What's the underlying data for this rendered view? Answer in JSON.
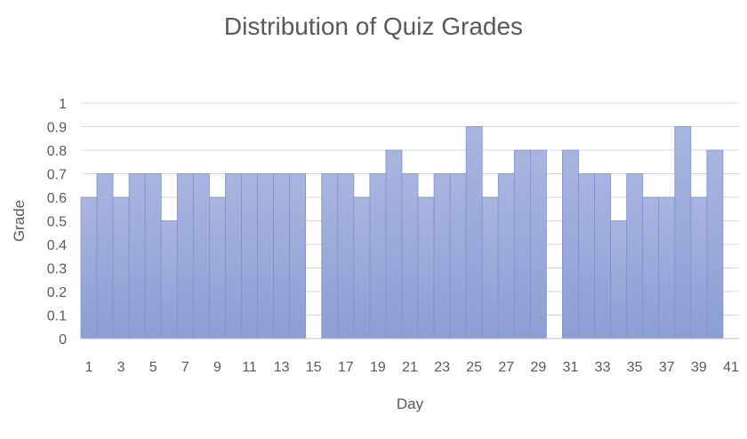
{
  "chart_data": {
    "type": "bar",
    "title": "Distribution of Quiz Grades",
    "xlabel": "Day",
    "ylabel": "Grade",
    "ylim": [
      0,
      1
    ],
    "yticks": [
      "0",
      "0.1",
      "0.2",
      "0.3",
      "0.4",
      "0.5",
      "0.6",
      "0.7",
      "0.8",
      "0.9",
      "1"
    ],
    "categories": [
      1,
      2,
      3,
      4,
      5,
      6,
      7,
      8,
      9,
      10,
      11,
      12,
      13,
      14,
      15,
      16,
      17,
      18,
      19,
      20,
      21,
      22,
      23,
      24,
      25,
      26,
      27,
      28,
      29,
      30,
      31,
      32,
      33,
      34,
      35,
      36,
      37,
      38,
      39,
      40,
      41
    ],
    "xtick_labels": [
      "1",
      "3",
      "5",
      "7",
      "9",
      "11",
      "13",
      "15",
      "17",
      "19",
      "21",
      "23",
      "25",
      "27",
      "29",
      "31",
      "33",
      "35",
      "37",
      "39",
      "41"
    ],
    "values": [
      0.6,
      0.7,
      0.6,
      0.7,
      0.7,
      0.5,
      0.7,
      0.7,
      0.6,
      0.7,
      0.7,
      0.7,
      0.7,
      0.7,
      0,
      0.7,
      0.7,
      0.6,
      0.7,
      0.8,
      0.7,
      0.6,
      0.7,
      0.7,
      0.9,
      0.6,
      0.7,
      0.8,
      0.8,
      0,
      0.8,
      0.7,
      0.7,
      0.5,
      0.7,
      0.6,
      0.6,
      0.9,
      0.6,
      0.8,
      0
    ],
    "grid": true,
    "colors": {
      "bar_top": "#a9b5e0",
      "bar_bottom": "#8d9ed4",
      "bar_edge": "#7f91cf",
      "grid": "#d9d9d9",
      "axis": "#bfbfbf"
    }
  }
}
